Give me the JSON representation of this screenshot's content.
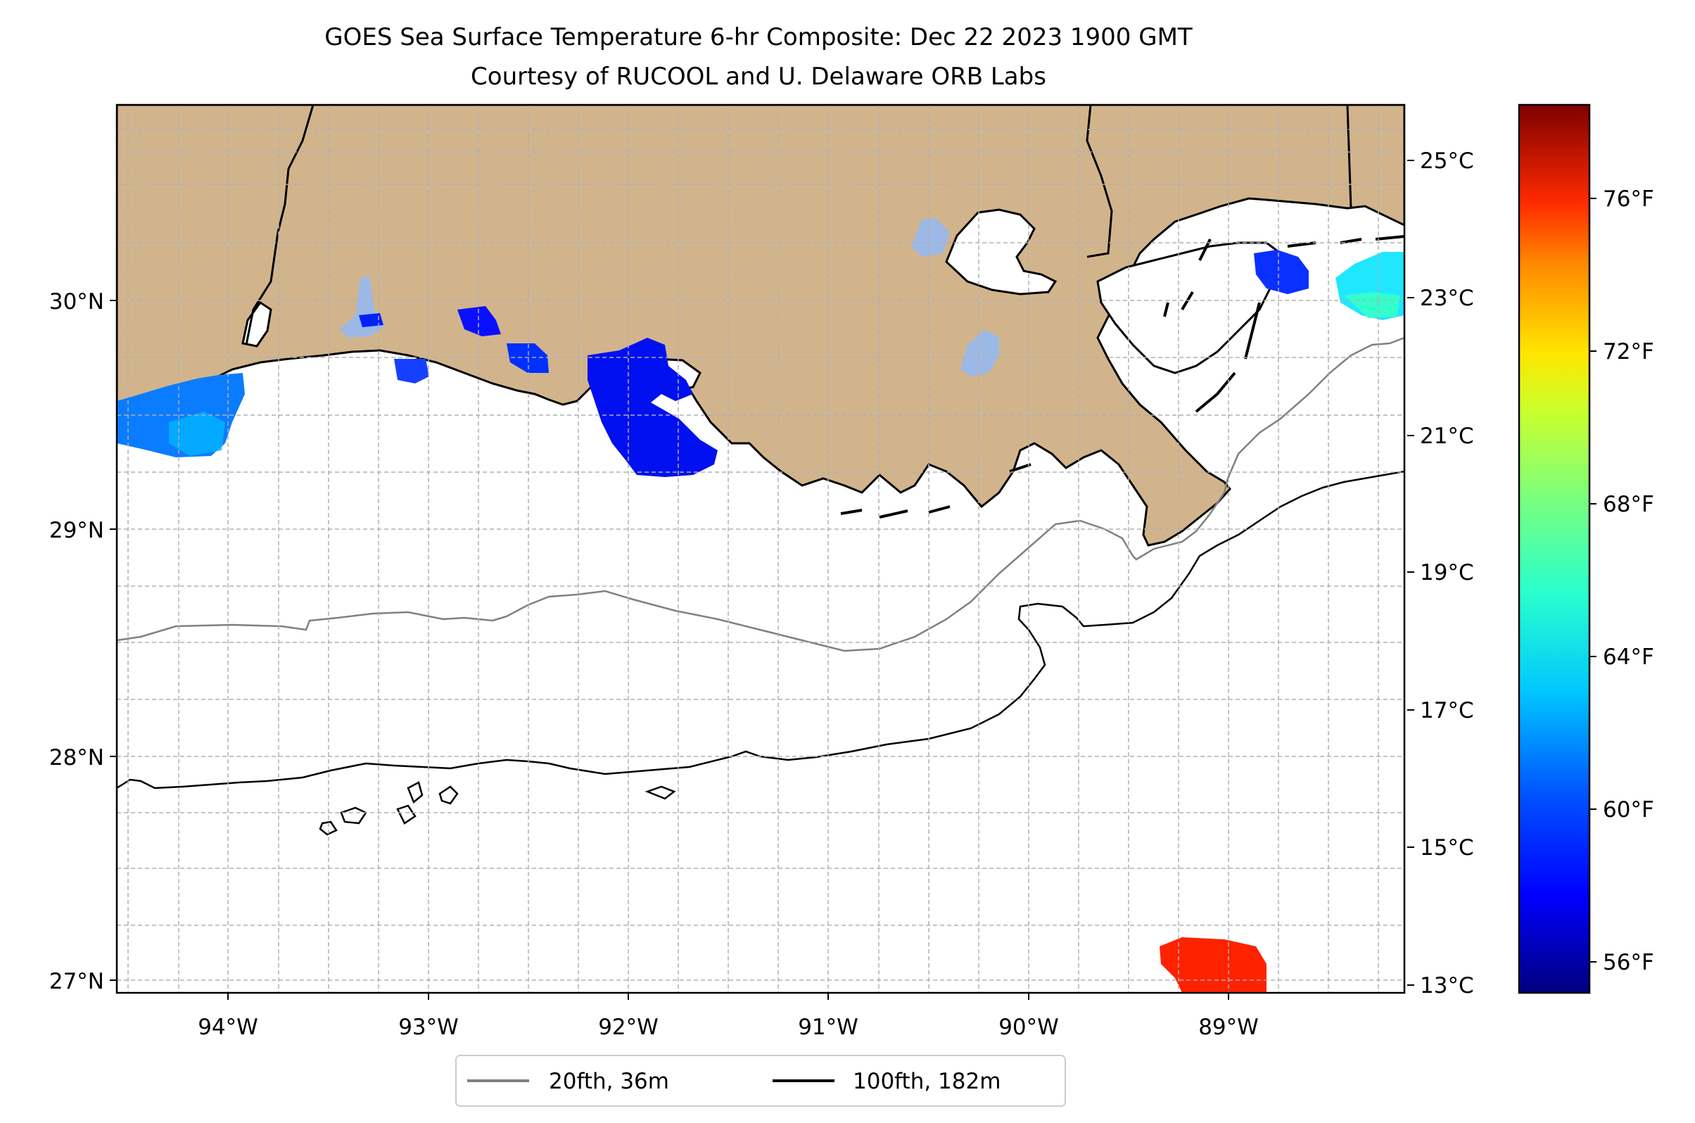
{
  "title": {
    "line1": "GOES Sea Surface Temperature 6-hr Composite: Dec 22 2023 1900 GMT",
    "line2": "Courtesy of RUCOOL and U. Delaware ORB Labs"
  },
  "map": {
    "lat_ticks": [
      "30°N",
      "29°N",
      "28°N",
      "27°N"
    ],
    "lon_ticks": [
      "94°W",
      "93°W",
      "92°W",
      "91°W",
      "90°W",
      "89°W"
    ],
    "colors": {
      "land": "#d2b48c",
      "water": "#ffffff",
      "isobath_20fth": "#808080",
      "isobath_100fth": "#000000",
      "grid": "#b0b0b0"
    }
  },
  "colorbar": {
    "celsius_ticks": [
      "25°C",
      "23°C",
      "21°C",
      "19°C",
      "17°C",
      "15°C",
      "13°C"
    ],
    "fahrenheit_ticks": [
      "76°F",
      "72°F",
      "68°F",
      "64°F",
      "60°F",
      "56°F"
    ],
    "colormap": "jet"
  },
  "legend": {
    "items": [
      {
        "label": "20fth, 36m",
        "color": "#808080"
      },
      {
        "label": "100fth, 182m",
        "color": "#000000"
      }
    ]
  }
}
